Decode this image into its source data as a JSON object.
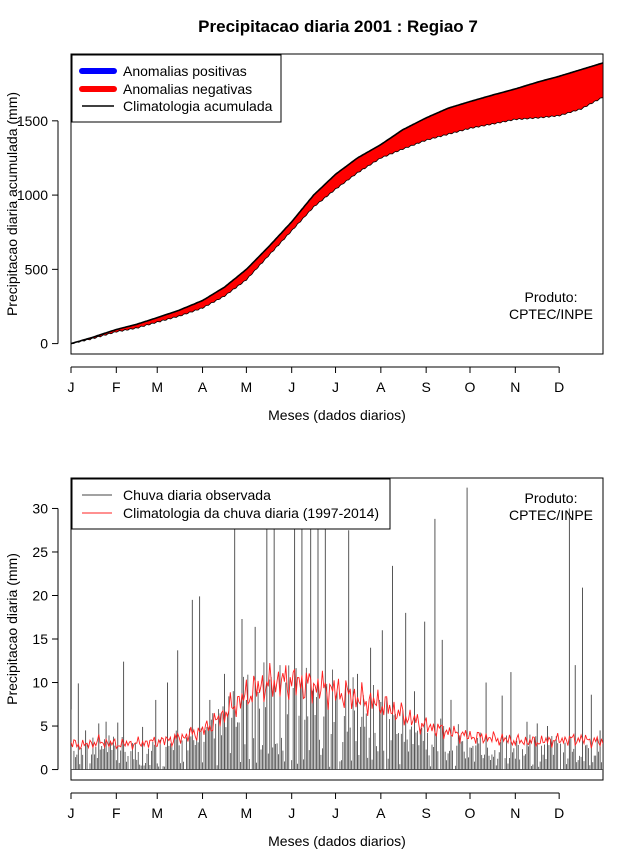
{
  "title": "Precipitacao diaria 2001 : Regiao 7",
  "chart_data": [
    {
      "type": "area",
      "title": "Precipitacao diaria 2001 : Regiao 7",
      "xlabel": "Meses (dados diarios)",
      "ylabel": "Precipitacao diaria acumulada (mm)",
      "xlim": [
        1,
        365
      ],
      "ylim": [
        -70,
        1950
      ],
      "x_ticks": [
        {
          "day": 1,
          "label": "J"
        },
        {
          "day": 32,
          "label": "F"
        },
        {
          "day": 60,
          "label": "M"
        },
        {
          "day": 91,
          "label": "A"
        },
        {
          "day": 121,
          "label": "M"
        },
        {
          "day": 152,
          "label": "J"
        },
        {
          "day": 182,
          "label": "J"
        },
        {
          "day": 213,
          "label": "A"
        },
        {
          "day": 244,
          "label": "S"
        },
        {
          "day": 274,
          "label": "O"
        },
        {
          "day": 305,
          "label": "N"
        },
        {
          "day": 335,
          "label": "D"
        }
      ],
      "y_ticks": [
        0,
        500,
        1000,
        1500
      ],
      "legend": {
        "position": "top-left",
        "entries": [
          {
            "label": "Anomalias positivas",
            "color": "#0000ff"
          },
          {
            "label": "Anomalias negativas",
            "color": "#ff0000"
          },
          {
            "label": "Climatologia acumulada",
            "color": "#000000"
          }
        ]
      },
      "annotation": [
        "Produto:",
        "CPTEC/INPE"
      ],
      "climatology_cumulative": {
        "day": [
          1,
          15,
          32,
          46,
          60,
          75,
          91,
          106,
          121,
          136,
          152,
          167,
          182,
          197,
          213,
          228,
          244,
          259,
          274,
          290,
          305,
          320,
          335,
          350,
          365
        ],
        "value": [
          0,
          40,
          95,
          130,
          175,
          225,
          290,
          380,
          500,
          650,
          820,
          1000,
          1140,
          1250,
          1340,
          1440,
          1520,
          1585,
          1630,
          1675,
          1715,
          1760,
          1800,
          1845,
          1890
        ]
      },
      "observed_cumulative": {
        "day": [
          1,
          15,
          32,
          46,
          60,
          75,
          91,
          106,
          121,
          136,
          152,
          167,
          182,
          197,
          213,
          228,
          244,
          259,
          274,
          290,
          305,
          320,
          335,
          350,
          365
        ],
        "value": [
          0,
          32,
          80,
          105,
          145,
          185,
          240,
          320,
          430,
          590,
          760,
          920,
          1040,
          1150,
          1250,
          1310,
          1370,
          1410,
          1450,
          1480,
          1510,
          1520,
          1535,
          1580,
          1660
        ]
      },
      "series_colors": {
        "negative": "#ff0000",
        "positive": "#0000ff",
        "climatology": "#000000"
      }
    },
    {
      "type": "line",
      "title": "",
      "xlabel": "Meses (dados diarios)",
      "ylabel": "Precipitacao diaria (mm)",
      "xlim": [
        1,
        365
      ],
      "ylim": [
        -1.2,
        33.5
      ],
      "x_ticks": [
        {
          "day": 1,
          "label": "J"
        },
        {
          "day": 32,
          "label": "F"
        },
        {
          "day": 60,
          "label": "M"
        },
        {
          "day": 91,
          "label": "A"
        },
        {
          "day": 121,
          "label": "M"
        },
        {
          "day": 152,
          "label": "J"
        },
        {
          "day": 182,
          "label": "J"
        },
        {
          "day": 213,
          "label": "A"
        },
        {
          "day": 244,
          "label": "S"
        },
        {
          "day": 274,
          "label": "O"
        },
        {
          "day": 305,
          "label": "N"
        },
        {
          "day": 335,
          "label": "D"
        }
      ],
      "y_ticks": [
        0,
        5,
        10,
        15,
        20,
        25,
        30
      ],
      "legend": {
        "position": "top-left",
        "entries": [
          {
            "label": "Chuva diaria observada",
            "color": "#444444"
          },
          {
            "label": "Climatologia da chuva diaria (1997-2014)",
            "color": "#ff2020"
          }
        ]
      },
      "annotation": [
        "Produto:",
        "CPTEC/INPE"
      ],
      "observed_peaks": {
        "day": [
          1,
          6,
          11,
          20,
          25,
          33,
          37,
          50,
          59,
          67,
          74,
          84,
          89,
          96,
          106,
          113,
          118,
          121,
          127,
          135,
          140,
          148,
          154,
          159,
          165,
          170,
          175,
          183,
          191,
          197,
          206,
          214,
          221,
          230,
          236,
          243,
          250,
          255,
          261,
          272,
          285,
          296,
          302,
          313,
          320,
          327,
          339,
          342,
          346,
          351,
          357,
          363
        ],
        "value": [
          6.9,
          9.9,
          4.5,
          5.3,
          5.5,
          5.4,
          12.4,
          4.9,
          8.0,
          10.0,
          13.7,
          19.5,
          19.9,
          8.0,
          11.0,
          30.0,
          17.3,
          8.0,
          16.4,
          30.0,
          28.0,
          10.0,
          28.0,
          30.0,
          28.0,
          31.0,
          28.0,
          9.0,
          27.5,
          11.0,
          14.0,
          16.0,
          23.4,
          18.0,
          9.0,
          17.0,
          28.8,
          14.9,
          8.0,
          32.4,
          10.0,
          8.5,
          11.2,
          5.5,
          5.3,
          5.0,
          3.1,
          30.0,
          12.0,
          20.9,
          8.6,
          4.5
        ]
      },
      "climatology_daily": {
        "day": [
          1,
          10,
          20,
          32,
          45,
          60,
          75,
          91,
          100,
          110,
          121,
          130,
          140,
          152,
          160,
          170,
          182,
          192,
          200,
          213,
          225,
          244,
          260,
          274,
          290,
          305,
          320,
          335,
          350,
          365
        ],
        "value": [
          3.0,
          2.8,
          3.2,
          2.9,
          3.0,
          3.2,
          3.6,
          4.5,
          5.5,
          7.0,
          8.5,
          9.5,
          10.0,
          10.2,
          9.8,
          9.5,
          9.0,
          8.5,
          8.0,
          7.5,
          6.5,
          5.0,
          4.3,
          3.8,
          3.6,
          3.3,
          3.2,
          3.4,
          3.5,
          3.1
        ]
      },
      "series_colors": {
        "observed": "#444444",
        "climatology": "#ff2020"
      }
    }
  ]
}
